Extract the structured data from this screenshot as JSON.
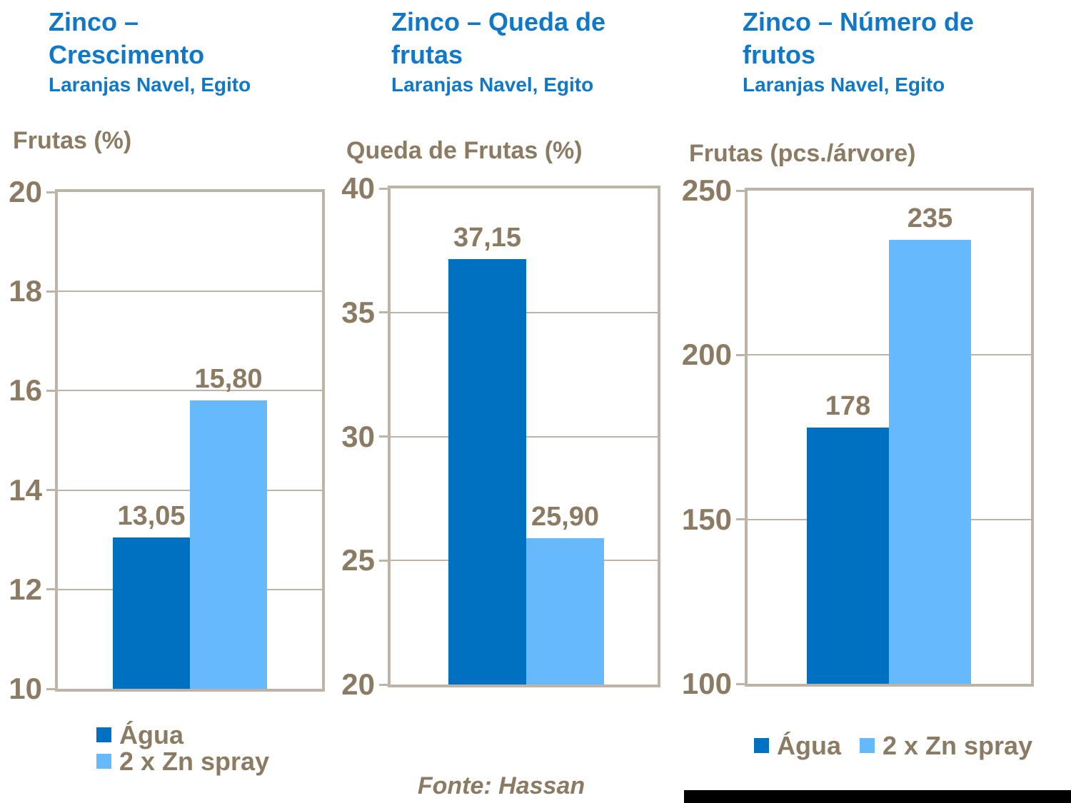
{
  "colors": {
    "title_blue": "#1178C8",
    "dark_blue": "#0070C0",
    "light_blue": "#66B9FC",
    "text_brown": "#8C7B63",
    "grid_brown": "#BDB3A7",
    "black_bar": "#000000",
    "background": "#FFFFFF"
  },
  "footer": {
    "source": "Fonte: Hassan"
  },
  "chart_data": [
    {
      "type": "bar",
      "title": "Zinco –\nCrescimento",
      "subtitle": "Laranjas Navel, Egito",
      "ylabel": "Frutas (%)",
      "ylim": [
        10,
        20
      ],
      "yticks": [
        20,
        18,
        16,
        14,
        12,
        10
      ],
      "grid": true,
      "categories": [
        "Água",
        "2 x Zn spray"
      ],
      "series": [
        {
          "name": "Água",
          "value": 13.05,
          "label": "13,05",
          "color": "#0070C0"
        },
        {
          "name": "2 x Zn spray",
          "value": 15.8,
          "label": "15,80",
          "color": "#66B9FC"
        }
      ],
      "legend_position": "bottom-left-vertical"
    },
    {
      "type": "bar",
      "title": "Zinco – Queda de\nfrutas",
      "subtitle": "Laranjas Navel, Egito",
      "ylabel": "Queda de Frutas (%)",
      "ylim": [
        20,
        40
      ],
      "yticks": [
        40,
        35,
        30,
        25,
        20
      ],
      "grid": true,
      "categories": [
        "Água",
        "2 x Zn spray"
      ],
      "series": [
        {
          "name": "Água",
          "value": 37.15,
          "label": "37,15",
          "color": "#0070C0"
        },
        {
          "name": "2 x Zn spray",
          "value": 25.9,
          "label": "25,90",
          "color": "#66B9FC"
        }
      ],
      "legend_position": "none"
    },
    {
      "type": "bar",
      "title": "Zinco – Número de\nfrutos",
      "subtitle": "Laranjas Navel, Egito",
      "ylabel": "Frutas (pcs./árvore)",
      "ylim": [
        100,
        250
      ],
      "yticks": [
        250,
        200,
        150,
        100
      ],
      "grid": true,
      "categories": [
        "Água",
        "2 x Zn spray"
      ],
      "series": [
        {
          "name": "Água",
          "value": 178,
          "label": "178",
          "color": "#0070C0"
        },
        {
          "name": "2 x Zn spray",
          "value": 235,
          "label": "235",
          "color": "#66B9FC"
        }
      ],
      "legend_position": "bottom-center-horizontal"
    }
  ]
}
